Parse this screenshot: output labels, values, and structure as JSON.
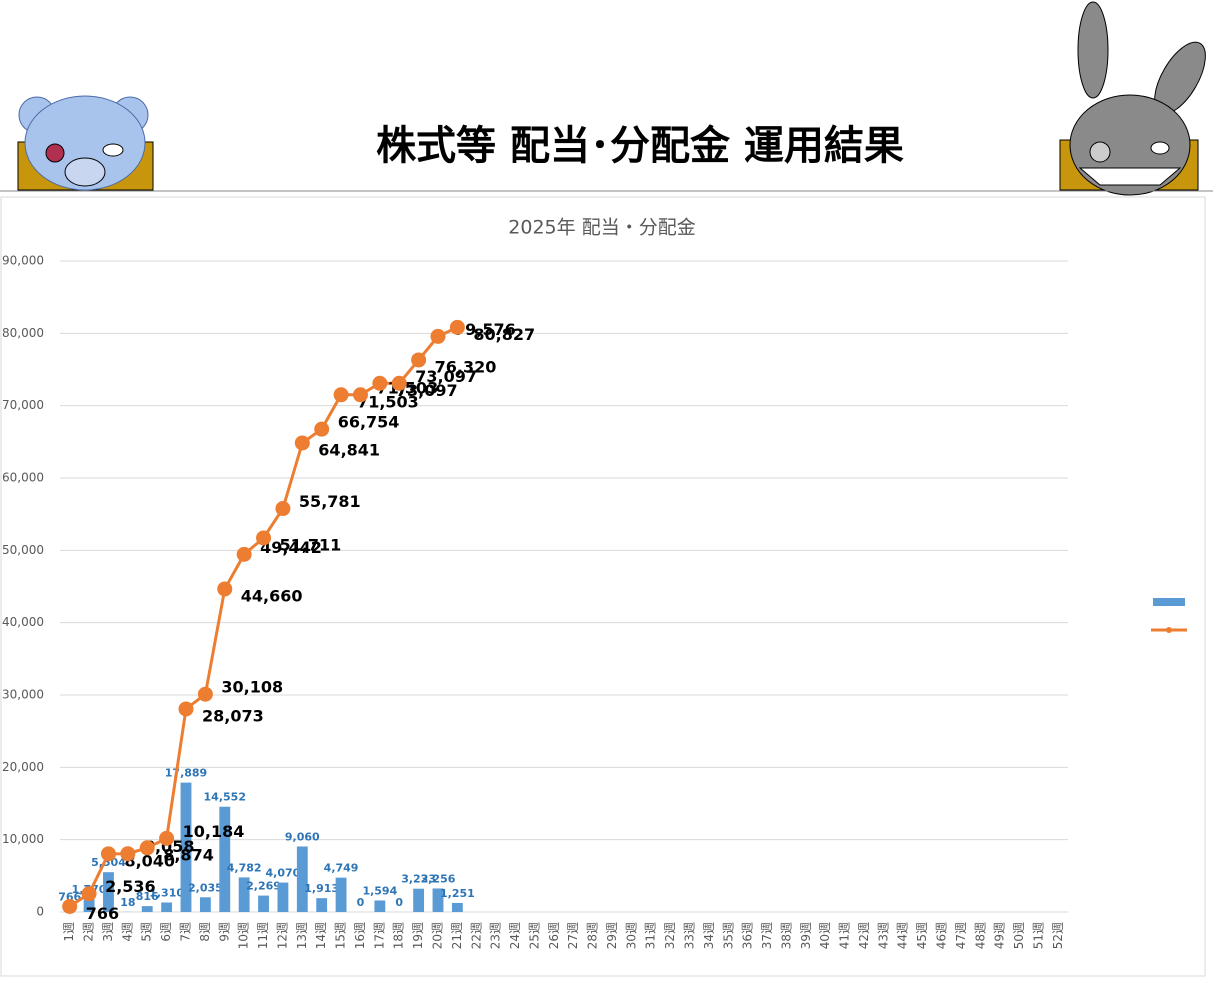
{
  "header": {
    "title": "株式等 配当･分配金 運用結果"
  },
  "chart_data": {
    "type": "bar_line",
    "title": "2025年 配当・分配金",
    "categories": [
      "1週",
      "2週",
      "3週",
      "4週",
      "5週",
      "6週",
      "7週",
      "8週",
      "9週",
      "10週",
      "11週",
      "12週",
      "13週",
      "14週",
      "15週",
      "16週",
      "17週",
      "18週",
      "19週",
      "20週",
      "21週",
      "22週",
      "23週",
      "24週",
      "25週",
      "26週",
      "27週",
      "28週",
      "29週",
      "30週",
      "31週",
      "32週",
      "33週",
      "34週",
      "35週",
      "36週",
      "37週",
      "38週",
      "39週",
      "40週",
      "41週",
      "42週",
      "43週",
      "44週",
      "45週",
      "46週",
      "47週",
      "48週",
      "49週",
      "50週",
      "51週",
      "52週"
    ],
    "series": [
      {
        "type": "bar",
        "color": "#5b9bd5",
        "values": [
          766,
          1770,
          5504,
          18,
          816,
          1310,
          17889,
          2035,
          14552,
          4782,
          2269,
          4070,
          9060,
          1913,
          4749,
          0,
          1594,
          0,
          3223,
          3256,
          1251,
          null,
          null,
          null,
          null,
          null,
          null,
          null,
          null,
          null,
          null,
          null,
          null,
          null,
          null,
          null,
          null,
          null,
          null,
          null,
          null,
          null,
          null,
          null,
          null,
          null,
          null,
          null,
          null,
          null,
          null,
          null
        ],
        "value_labels": [
          "766",
          "1,770",
          "5,504",
          "18",
          "816",
          "1,310",
          "17,889",
          "2,035",
          "14,552",
          "4,782",
          "2,269",
          "4,070",
          "9,060",
          "1,913",
          "4,749",
          "0",
          "1,594",
          "0",
          "3,223",
          "3,256",
          "1,251",
          null,
          null,
          null,
          null,
          null,
          null,
          null,
          null,
          null,
          null,
          null,
          null,
          null,
          null,
          null,
          null,
          null,
          null,
          null,
          null,
          null,
          null,
          null,
          null,
          null,
          null,
          null,
          null,
          null,
          null,
          null
        ]
      },
      {
        "type": "line",
        "color": "#ed7d31",
        "values": [
          766,
          2536,
          8040,
          8058,
          8874,
          10184,
          28073,
          30108,
          44660,
          49442,
          51711,
          55781,
          64841,
          66754,
          71503,
          71503,
          73097,
          73097,
          76320,
          79576,
          80827,
          null,
          null,
          null,
          null,
          null,
          null,
          null,
          null,
          null,
          null,
          null,
          null,
          null,
          null,
          null,
          null,
          null,
          null,
          null,
          null,
          null,
          null,
          null,
          null,
          null,
          null,
          null,
          null,
          null,
          null,
          null
        ],
        "value_labels": [
          "766",
          "2,536",
          "8,040",
          "8,058",
          "8,874",
          "10,184",
          "28,073",
          "30,108",
          "44,660",
          "49,442",
          "51,711",
          "55,781",
          "64,841",
          "66,754",
          "71,503",
          "71,503",
          "73,097",
          "73,097",
          "76,320",
          "79,576",
          "80,827",
          null,
          null,
          null,
          null,
          null,
          null,
          null,
          null,
          null,
          null,
          null,
          null,
          null,
          null,
          null,
          null,
          null,
          null,
          null,
          null,
          null,
          null,
          null,
          null,
          null,
          null,
          null,
          null,
          null,
          null,
          null
        ]
      }
    ],
    "ylim": [
      0,
      90000
    ],
    "yticks": [
      0,
      {
        "value": 10000,
        "label": "10,000"
      },
      {
        "value": 20000,
        "label": "20,000"
      },
      {
        "value": 30000,
        "label": "30,000"
      },
      {
        "value": 40000,
        "label": "40,000"
      },
      {
        "value": 50000,
        "label": "50,000"
      },
      {
        "value": 60000,
        "label": "60,000"
      },
      {
        "value": 70000,
        "label": "70,000"
      },
      {
        "value": 80000,
        "label": "80,000"
      },
      {
        "value": 90000,
        "label": "90,000"
      }
    ],
    "grid": true,
    "legend": "right"
  }
}
